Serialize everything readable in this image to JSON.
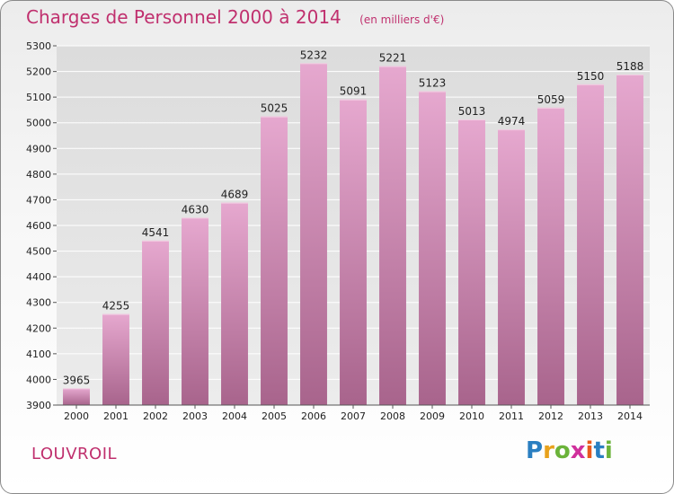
{
  "header": {
    "title": "Charges de Personnel 2000 à 2014",
    "subtitle": "(en milliers d'€)"
  },
  "footer": {
    "commune": "LOUVROIL",
    "logo_letters": [
      "P",
      "r",
      "o",
      "x",
      "i",
      "t",
      "i"
    ],
    "logo_colors": [
      "#2a7fc1",
      "#e8a21c",
      "#6bb33a",
      "#d0309c",
      "#e85a1c",
      "#2a7fc1",
      "#6bb33a"
    ]
  },
  "colors": {
    "bar_top": "#e6a8cf",
    "bar_bottom": "#a8648c",
    "text": "#222222",
    "grid": "#ffffff"
  },
  "chart_data": {
    "type": "bar",
    "categories": [
      "2000",
      "2001",
      "2002",
      "2003",
      "2004",
      "2005",
      "2006",
      "2007",
      "2008",
      "2009",
      "2010",
      "2011",
      "2012",
      "2013",
      "2014"
    ],
    "values": [
      3965,
      4255,
      4541,
      4630,
      4689,
      5025,
      5232,
      5091,
      5221,
      5123,
      5013,
      4974,
      5059,
      5150,
      5188
    ],
    "value_labels": [
      "3965",
      "4255",
      "4541",
      "4630",
      "4689",
      "5025",
      "5232",
      "5091",
      "5221",
      "5123",
      "5013",
      "4974",
      "5059",
      "5150",
      "5188"
    ],
    "yticks": [
      "3900",
      "4000",
      "4100",
      "4200",
      "4300",
      "4400",
      "4500",
      "4600",
      "4700",
      "4800",
      "4900",
      "5000",
      "5100",
      "5200",
      "5300"
    ],
    "ylim": [
      3900,
      5300
    ],
    "grid": true,
    "legend": "none",
    "title": "Charges de Personnel 2000 à 2014",
    "xlabel": "",
    "ylabel": ""
  }
}
